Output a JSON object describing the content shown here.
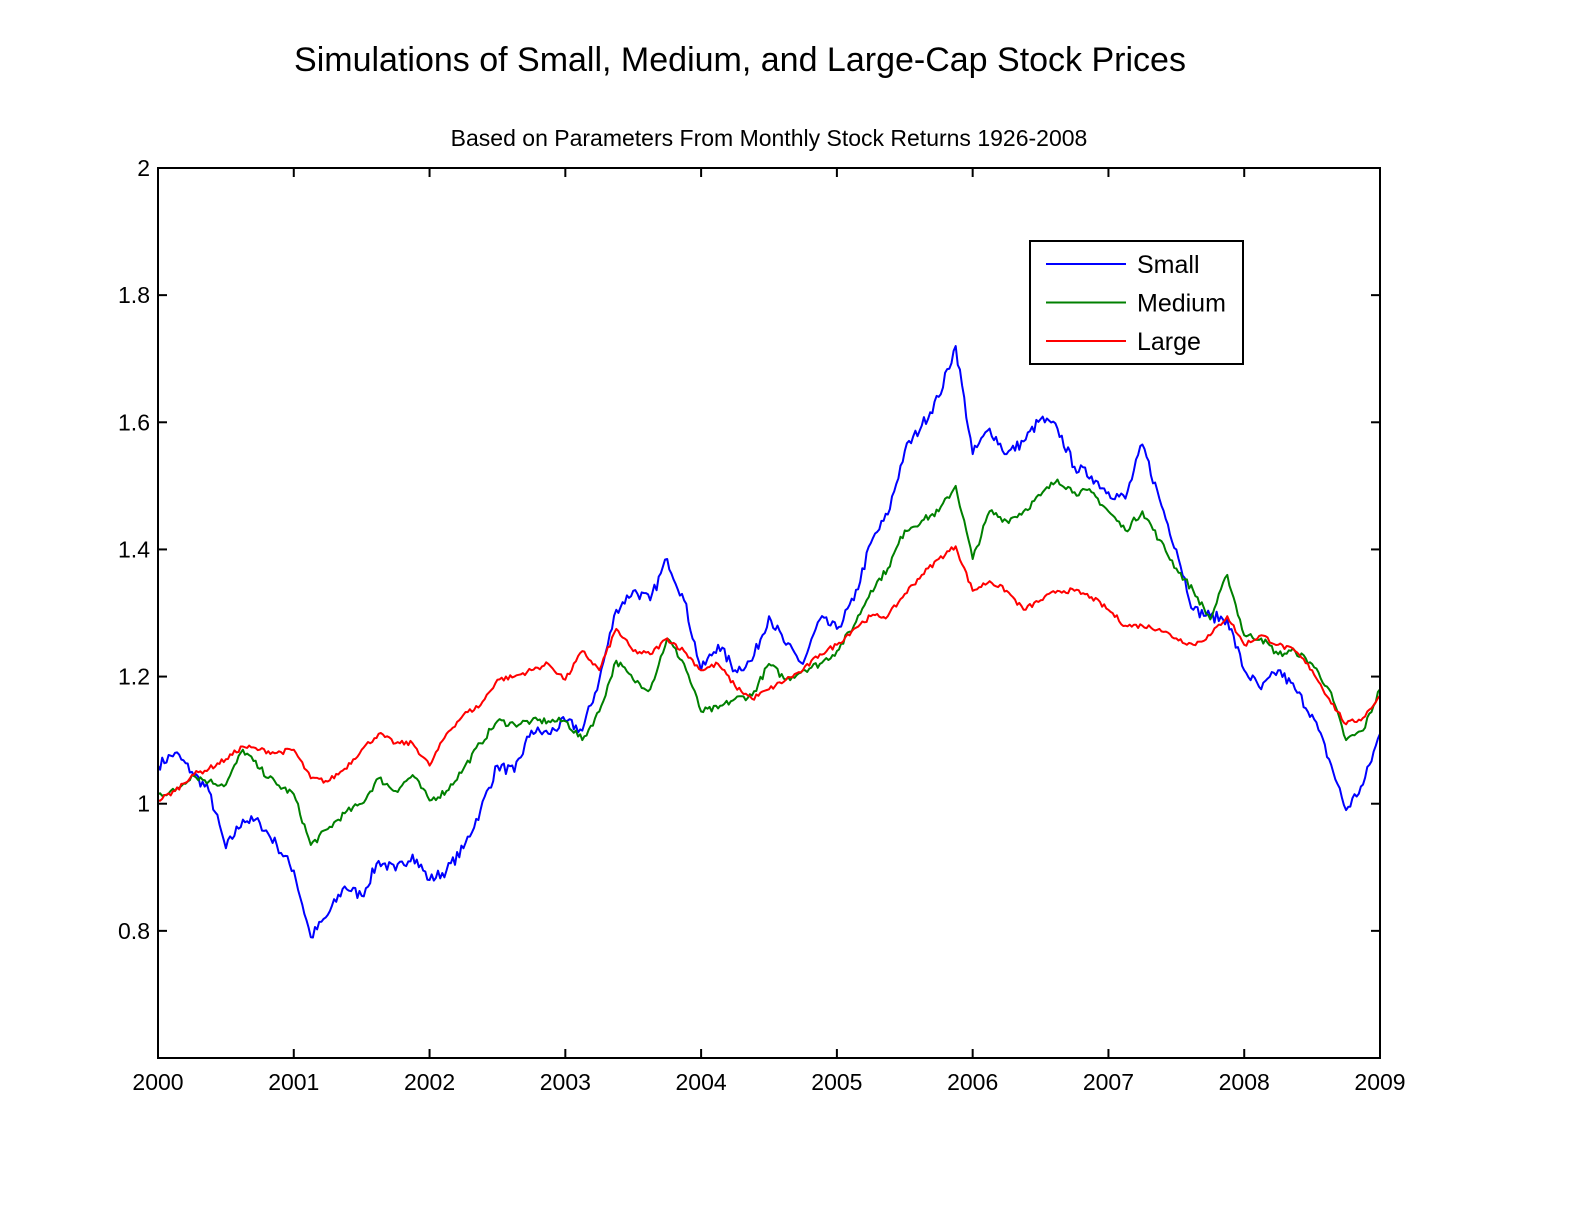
{
  "chart_data": {
    "type": "line",
    "title": "Simulations of Small, Medium, and Large-Cap Stock Prices",
    "subtitle": "Based on Parameters From Monthly Stock Returns 1926-2008",
    "xlabel": "",
    "ylabel": "",
    "xlim": [
      2000,
      2009
    ],
    "ylim": [
      0.6,
      2
    ],
    "xticks": [
      "2000",
      "2001",
      "2002",
      "2003",
      "2004",
      "2005",
      "2006",
      "2007",
      "2008",
      "2009"
    ],
    "yticks": [
      "0.8",
      "1",
      "1.2",
      "1.4",
      "1.6",
      "1.8",
      "2"
    ],
    "grid": false,
    "legend_position": "top-right",
    "x_step_years": 0.125,
    "series": [
      {
        "name": "Small",
        "color": "#0000ff",
        "values": [
          1.06,
          1.08,
          1.05,
          1.02,
          0.93,
          0.975,
          0.97,
          0.935,
          0.895,
          0.79,
          0.825,
          0.87,
          0.855,
          0.91,
          0.895,
          0.92,
          0.88,
          0.895,
          0.93,
          0.99,
          1.06,
          1.05,
          1.115,
          1.11,
          1.13,
          1.115,
          1.195,
          1.305,
          1.335,
          1.32,
          1.385,
          1.32,
          1.21,
          1.25,
          1.21,
          1.225,
          1.295,
          1.25,
          1.22,
          1.29,
          1.275,
          1.32,
          1.41,
          1.455,
          1.555,
          1.595,
          1.64,
          1.72,
          1.55,
          1.59,
          1.55,
          1.57,
          1.605,
          1.59,
          1.53,
          1.515,
          1.49,
          1.48,
          1.565,
          1.48,
          1.4,
          1.305,
          1.295,
          1.29,
          1.21,
          1.18,
          1.21,
          1.18,
          1.14,
          1.07,
          0.99,
          1.03,
          1.11
        ]
      },
      {
        "name": "Medium",
        "color": "#008000",
        "values": [
          1.015,
          1.02,
          1.045,
          1.035,
          1.03,
          1.085,
          1.055,
          1.03,
          1.015,
          0.935,
          0.96,
          0.985,
          1.0,
          1.04,
          1.02,
          1.045,
          1.005,
          1.02,
          1.055,
          1.095,
          1.13,
          1.125,
          1.13,
          1.13,
          1.13,
          1.1,
          1.145,
          1.225,
          1.195,
          1.18,
          1.26,
          1.22,
          1.145,
          1.15,
          1.165,
          1.17,
          1.22,
          1.195,
          1.21,
          1.22,
          1.24,
          1.28,
          1.335,
          1.37,
          1.43,
          1.445,
          1.46,
          1.5,
          1.385,
          1.46,
          1.445,
          1.46,
          1.485,
          1.51,
          1.49,
          1.49,
          1.46,
          1.43,
          1.46,
          1.415,
          1.37,
          1.335,
          1.29,
          1.36,
          1.265,
          1.26,
          1.235,
          1.24,
          1.22,
          1.18,
          1.1,
          1.115,
          1.18
        ]
      },
      {
        "name": "Large",
        "color": "#ff0000",
        "values": [
          1.005,
          1.02,
          1.045,
          1.055,
          1.07,
          1.09,
          1.085,
          1.08,
          1.085,
          1.04,
          1.035,
          1.055,
          1.085,
          1.11,
          1.095,
          1.095,
          1.06,
          1.11,
          1.14,
          1.155,
          1.195,
          1.2,
          1.21,
          1.22,
          1.195,
          1.24,
          1.21,
          1.275,
          1.24,
          1.235,
          1.26,
          1.24,
          1.21,
          1.22,
          1.185,
          1.165,
          1.18,
          1.195,
          1.21,
          1.235,
          1.25,
          1.275,
          1.295,
          1.295,
          1.33,
          1.36,
          1.385,
          1.405,
          1.335,
          1.35,
          1.335,
          1.305,
          1.32,
          1.335,
          1.335,
          1.325,
          1.305,
          1.28,
          1.28,
          1.275,
          1.26,
          1.25,
          1.265,
          1.295,
          1.25,
          1.265,
          1.25,
          1.24,
          1.21,
          1.165,
          1.125,
          1.135,
          1.17
        ]
      }
    ]
  }
}
